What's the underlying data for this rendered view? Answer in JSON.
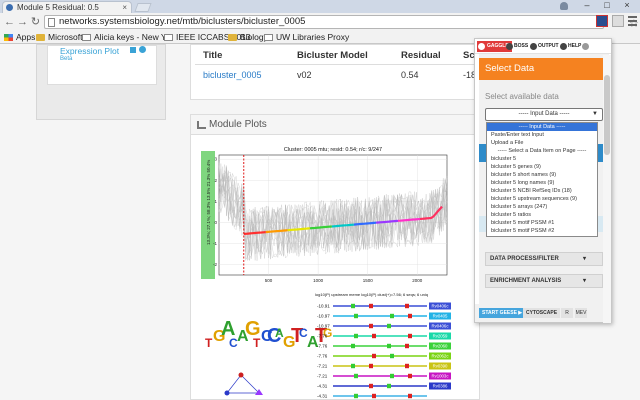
{
  "browser": {
    "tab_title": "Module 5 Residual: 0.5",
    "tab_close": "×",
    "url": "networks.systemsbiology.net/mtb/biclusters/bicluster_0005",
    "window_controls": [
      "–",
      "□",
      "×"
    ],
    "nav": {
      "back": "←",
      "forward": "→",
      "reload": "↻"
    }
  },
  "bookmarks": [
    {
      "label": "Apps",
      "icon": "apps-icon"
    },
    {
      "label": "Microsoft",
      "icon": "folder-icon"
    },
    {
      "label": "Alicia keys - New Y",
      "icon": "page-icon"
    },
    {
      "label": "IEEE ICCABS 2013",
      "icon": "page-icon"
    },
    {
      "label": "Biology",
      "icon": "folder-icon"
    },
    {
      "label": "UW Libraries Proxy",
      "icon": "page-icon"
    }
  ],
  "left_panel": {
    "link": "Expression Plot",
    "sub": "Beta"
  },
  "bicluster_table": {
    "headers": [
      "Title",
      "Bicluster Model",
      "Residual",
      "Sco"
    ],
    "row": [
      "bicluster_0005",
      "v02",
      "0.54",
      "-18"
    ]
  },
  "module_plots": {
    "title": "Module Plots"
  },
  "chart_data": [
    {
      "type": "line",
      "title": "Cluster: 0005 mtu; resid: 0.54; r/c: 9/247",
      "ylabel": "13.3%; 27.1%; 58.3% 13.5% 21.3% 50.4%",
      "x_ticks": [
        500,
        1000,
        1500,
        2000
      ],
      "y_ticks": [
        3,
        2,
        1,
        0,
        -1,
        -2
      ],
      "xlim": [
        0,
        2300
      ],
      "ylim": [
        -2.5,
        3.2
      ],
      "grid": true,
      "marker_x": 250
    },
    {
      "type": "table",
      "title": "log10(P) upstream meme   log10(P) clust(+)=7.56; 6 seqs; 6 uniq",
      "rows": [
        {
          "label": "-10.91",
          "color": "#3a4fd6",
          "tag": "Rv0406c"
        },
        {
          "label": "-10.97",
          "color": "#22b3e6",
          "tag": "Rv0405"
        },
        {
          "label": "-10.97",
          "color": "#3a4fd6",
          "tag": "Rv0406c"
        },
        {
          "label": "-7.76",
          "color": "#19d9a8",
          "tag": "Rv2059"
        },
        {
          "label": "-7.76",
          "color": "#3bd23b",
          "tag": "Rv2060"
        },
        {
          "label": "-7.76",
          "color": "#7ad414",
          "tag": "Rv2062c"
        },
        {
          "label": "-7.21",
          "color": "#c9c415",
          "tag": "Rv0390"
        },
        {
          "label": "-7.21",
          "color": "#c714c3",
          "tag": "Rv1003c"
        },
        {
          "label": "-4.31",
          "color": "#2b39c9",
          "tag": "Rv0386"
        },
        {
          "label": "-4.31",
          "color": "#3fb2e6",
          "tag": ""
        }
      ]
    }
  ],
  "popup": {
    "toolbar": [
      {
        "label": "GAGGLE",
        "icon": "gaggle-icon"
      },
      {
        "label": "BOSS",
        "icon": "boss-icon"
      },
      {
        "label": "OUTPUT",
        "icon": "output-icon"
      },
      {
        "label": "HELP",
        "icon": "help-icon"
      }
    ],
    "header": "Select Data",
    "select_label": "Select available data",
    "select_value": "----- Input Data -----",
    "options": [
      "----- Input Data -----",
      "Paste/Enter text Input",
      "Upload a File",
      "----- Select a Data Item on Page -----",
      "bicluster 5",
      "bicluster 5 genes (9)",
      "bicluster 5 short names (9)",
      "bicluster 5 long names (9)",
      "bicluster 5 NCBI RefSeq IDs (18)",
      "bicluster 5 upstream sequences (9)",
      "bicluster 5 arrays (247)",
      "bicluster 5 ratios",
      "bicluster 5 motif PSSM #1",
      "bicluster 5 motif PSSM #2"
    ],
    "data_process": "DATA PROCESS/FILTER",
    "enrichment": "ENRICHMENT ANALYSIS",
    "start_label": "START GEESE ▶",
    "cytoscape": "CYTOSCAPE",
    "small1": "R",
    "small2": "MEV"
  }
}
